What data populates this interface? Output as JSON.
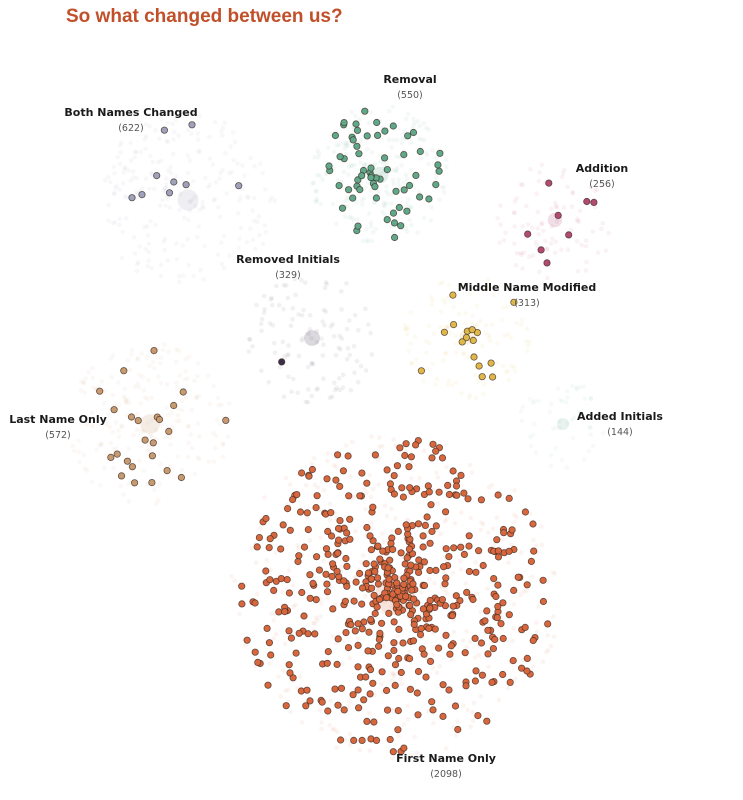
{
  "title": "So what changed between us?",
  "chart_data": {
    "type": "scatter",
    "title": "So what changed between us?",
    "clusters": [
      {
        "id": "removal",
        "label": "Removal",
        "count_label": "(550)",
        "count": 550,
        "color": "#5fa98a",
        "highlighted": 62
      },
      {
        "id": "both-names-changed",
        "label": "Both Names Changed",
        "count_label": "(622)",
        "count": 622,
        "color": "#9ea2bd",
        "highlighted": 9
      },
      {
        "id": "addition",
        "label": "Addition",
        "count_label": "(256)",
        "count": 256,
        "color": "#b34a72",
        "highlighted": 8
      },
      {
        "id": "removed-initials",
        "label": "Removed Initials",
        "count_label": "(329)",
        "count": 329,
        "color": "#3a2e4a",
        "highlighted": 1
      },
      {
        "id": "middle-name-modified",
        "label": "Middle Name Modified",
        "count_label": "(313)",
        "count": 313,
        "color": "#e0b84a",
        "highlighted": 16
      },
      {
        "id": "last-name-only",
        "label": "Last Name Only",
        "count_label": "(572)",
        "count": 572,
        "color": "#c89a70",
        "highlighted": 24
      },
      {
        "id": "added-initials",
        "label": "Added Initials",
        "count_label": "(144)",
        "count": 144,
        "color": "#7fb8a4",
        "highlighted": 0
      },
      {
        "id": "first-name-only",
        "label": "First Name Only",
        "count_label": "(2098)",
        "count": 2098,
        "color": "#d9673e",
        "highlighted": 520
      }
    ]
  }
}
